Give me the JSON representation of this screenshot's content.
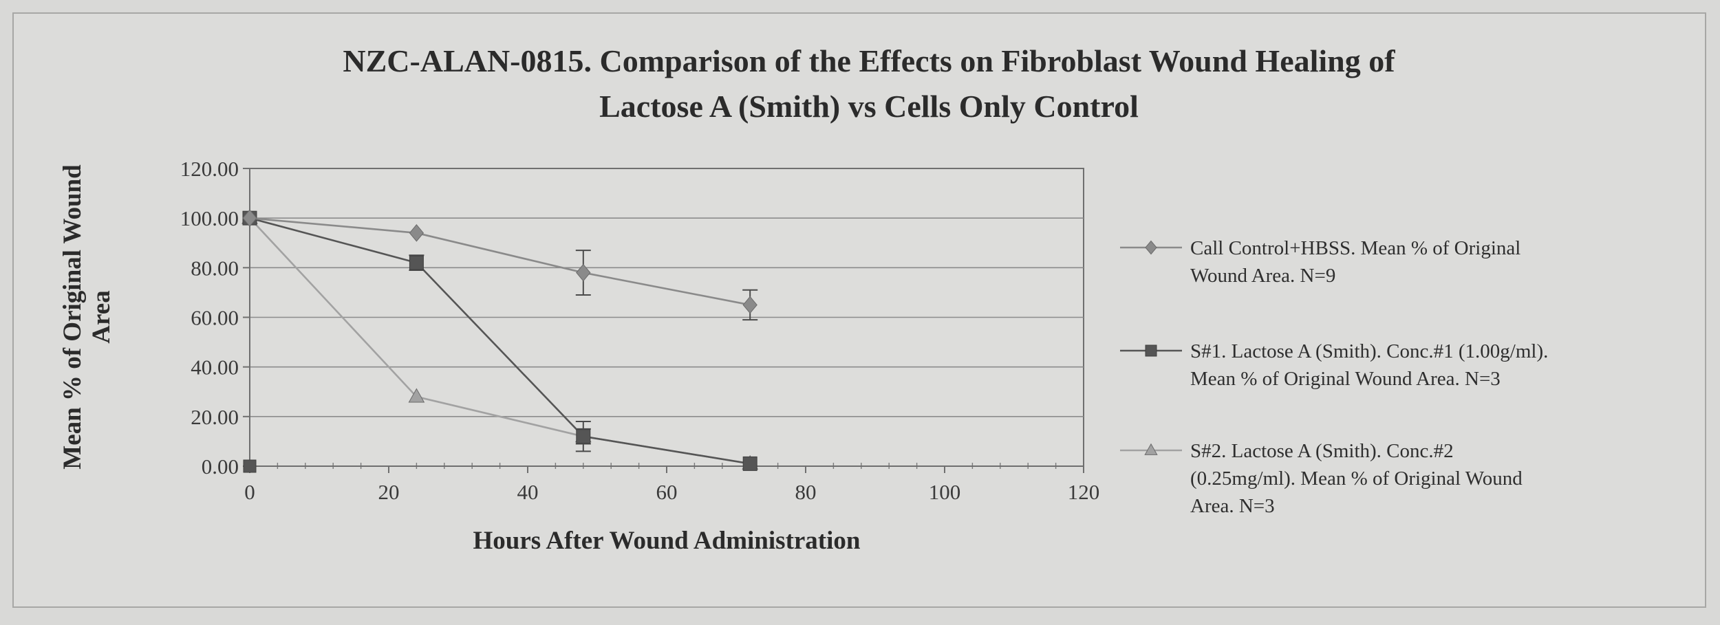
{
  "chart_data": {
    "type": "line",
    "title_lines": [
      "NZC-ALAN-0815. Comparison of the Effects on Fibroblast Wound Healing of",
      "Lactose A (Smith) vs Cells Only Control"
    ],
    "xlabel": "Hours After Wound Administration",
    "ylabel_lines": [
      "Mean % of Original Wound",
      "Area"
    ],
    "xlim": [
      0,
      120
    ],
    "ylim": [
      0,
      120
    ],
    "xticks": [
      "0",
      "20",
      "40",
      "60",
      "80",
      "100",
      "120"
    ],
    "yticks": [
      "0.00",
      "20.00",
      "40.00",
      "60.00",
      "80.00",
      "100.00",
      "120.00"
    ],
    "grid": true,
    "legend_position": "right",
    "series": [
      {
        "name_lines": [
          "Call Control+HBSS.  Mean % of Original",
          "Wound Area.  N=9"
        ],
        "marker": "diamond",
        "color": "#8a8a8a",
        "x": [
          0,
          24,
          48,
          72
        ],
        "y": [
          100,
          94,
          78,
          65
        ],
        "err": [
          0,
          0,
          9,
          6
        ]
      },
      {
        "name_lines": [
          "S#1. Lactose A (Smith). Conc.#1 (1.00g/ml).",
          "Mean % of Original Wound Area. N=3"
        ],
        "marker": "square",
        "color": "#555555",
        "x": [
          0,
          24,
          48,
          72
        ],
        "y": [
          100,
          82,
          12,
          1
        ],
        "err": [
          0,
          3,
          6,
          0
        ]
      },
      {
        "name_lines": [
          "S#2. Lactose A (Smith). Conc.#2",
          "(0.25mg/ml).  Mean % of Original Wound",
          "Area. N=3"
        ],
        "marker": "triangle",
        "color": "#a2a2a2",
        "x": [
          0,
          24,
          48,
          72
        ],
        "y": [
          100,
          28,
          12,
          1
        ],
        "err": [
          0,
          0,
          3,
          0
        ]
      }
    ]
  }
}
